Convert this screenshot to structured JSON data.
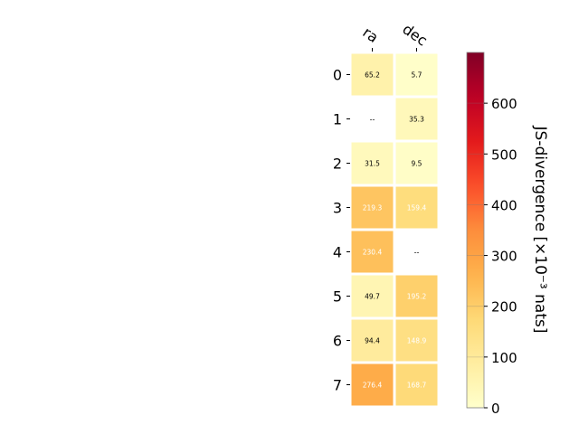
{
  "chart_data": {
    "type": "heatmap",
    "columns": [
      "ra",
      "dec"
    ],
    "rows": [
      "0",
      "1",
      "2",
      "3",
      "4",
      "5",
      "6",
      "7"
    ],
    "values": [
      [
        65.2,
        5.7
      ],
      [
        null,
        35.3
      ],
      [
        31.5,
        9.5
      ],
      [
        219.3,
        159.4
      ],
      [
        230.4,
        null
      ],
      [
        49.7,
        195.2
      ],
      [
        94.4,
        148.9
      ],
      [
        276.4,
        168.7
      ]
    ],
    "missing_label": "--",
    "colorbar": {
      "label": "JS-divergence [×10⁻³ nats]",
      "min": 0,
      "max": 700,
      "ticks": [
        0,
        100,
        200,
        300,
        400,
        500,
        600
      ],
      "colormap": "YlOrRd"
    },
    "grid": false
  }
}
